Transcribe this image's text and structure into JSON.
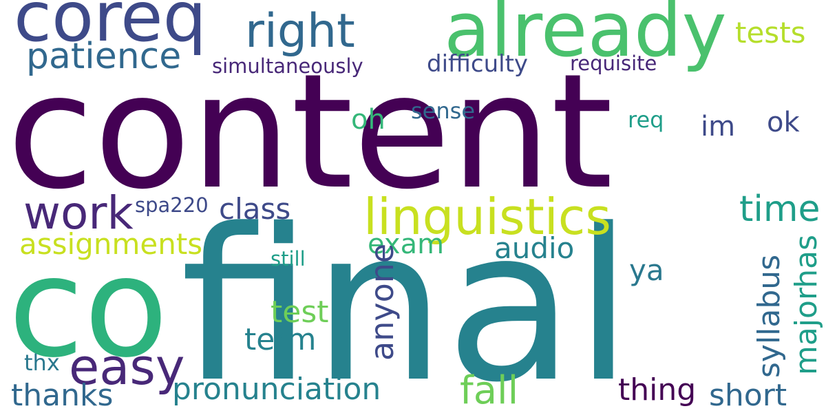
{
  "palette": {
    "deep_purple": "#440154",
    "indigo": "#482878",
    "blue_slate": "#3e4a89",
    "steel_blue": "#31688e",
    "teal": "#26828e",
    "teal_green": "#1f9e89",
    "green": "#35b779",
    "light_green": "#6ece58",
    "lime": "#b5de2b",
    "yellow_green": "#c8e020"
  },
  "words": {
    "content": "content",
    "final": "final",
    "co": "co",
    "coreq": "coreq",
    "already": "already",
    "right": "right",
    "linguistics": "linguistics",
    "work": "work",
    "easy": "easy",
    "patience": "patience",
    "tests": "tests",
    "simultaneously": "simultaneously",
    "difficulty": "difficulty",
    "requisite": "requisite",
    "oh": "oh",
    "sense": "sense",
    "req": "req",
    "im": "im",
    "ok": "ok",
    "time": "time",
    "class": "class",
    "spa220": "spa220",
    "assignments": "assignments",
    "exam": "exam",
    "audio": "audio",
    "still": "still",
    "ya": "ya",
    "anyone": "anyone",
    "syllabus": "syllabus",
    "majorhas": "majorhas",
    "test": "test",
    "term": "term",
    "thx": "thx",
    "thanks": "thanks",
    "pronunciation": "pronunciation",
    "fall": "fall",
    "thing": "thing",
    "short": "short"
  }
}
